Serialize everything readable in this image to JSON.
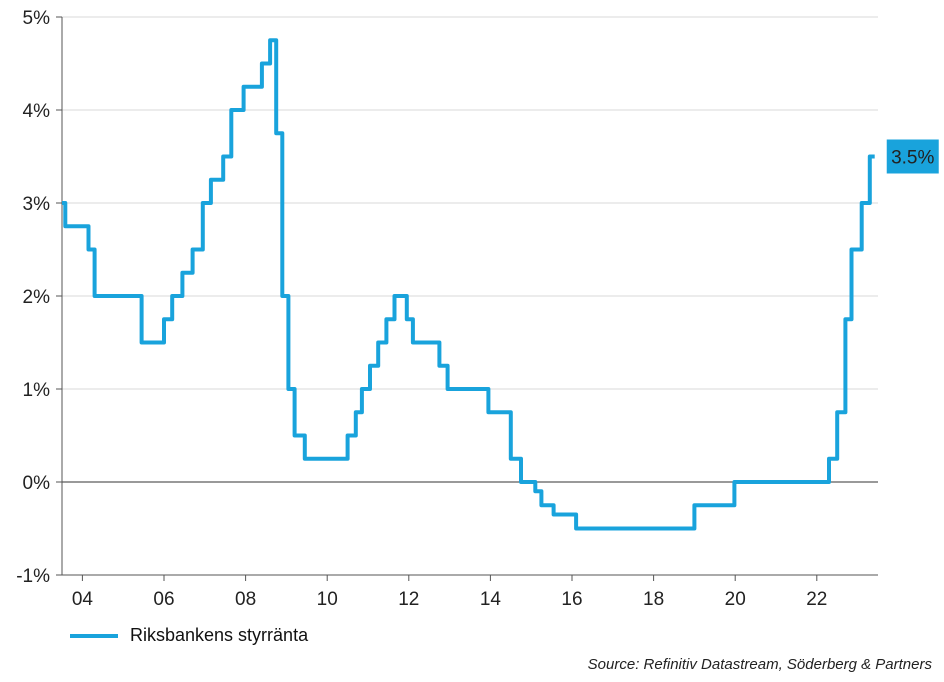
{
  "chart_data": {
    "type": "line",
    "title": "",
    "xlabel": "",
    "ylabel": "",
    "xlim": [
      2003.5,
      2023.5
    ],
    "ylim": [
      -1,
      5
    ],
    "x_ticks": [
      2004,
      2006,
      2008,
      2010,
      2012,
      2014,
      2016,
      2018,
      2020,
      2022
    ],
    "x_tick_labels": [
      "04",
      "06",
      "08",
      "10",
      "12",
      "14",
      "16",
      "18",
      "20",
      "22"
    ],
    "y_ticks": [
      -1,
      0,
      1,
      2,
      3,
      4,
      5
    ],
    "y_tick_labels": [
      "-1%",
      "0%",
      "1%",
      "2%",
      "3%",
      "4%",
      "5%"
    ],
    "grid": "horizontal",
    "zero_line": true,
    "legend_position": "bottom-left",
    "series": [
      {
        "name": "Riksbankens styrränta",
        "color": "#19a3dc",
        "step": true,
        "points": [
          [
            2003.5,
            3.0
          ],
          [
            2003.58,
            2.75
          ],
          [
            2004.15,
            2.5
          ],
          [
            2004.3,
            2.0
          ],
          [
            2005.45,
            1.5
          ],
          [
            2006.0,
            1.75
          ],
          [
            2006.2,
            2.0
          ],
          [
            2006.45,
            2.25
          ],
          [
            2006.7,
            2.5
          ],
          [
            2006.95,
            3.0
          ],
          [
            2007.15,
            3.25
          ],
          [
            2007.45,
            3.5
          ],
          [
            2007.65,
            4.0
          ],
          [
            2007.95,
            4.25
          ],
          [
            2008.4,
            4.5
          ],
          [
            2008.6,
            4.75
          ],
          [
            2008.75,
            3.75
          ],
          [
            2008.9,
            2.0
          ],
          [
            2009.05,
            1.0
          ],
          [
            2009.2,
            0.5
          ],
          [
            2009.45,
            0.25
          ],
          [
            2010.5,
            0.5
          ],
          [
            2010.7,
            0.75
          ],
          [
            2010.85,
            1.0
          ],
          [
            2011.05,
            1.25
          ],
          [
            2011.25,
            1.5
          ],
          [
            2011.45,
            1.75
          ],
          [
            2011.65,
            2.0
          ],
          [
            2011.95,
            1.75
          ],
          [
            2012.1,
            1.5
          ],
          [
            2012.75,
            1.25
          ],
          [
            2012.95,
            1.0
          ],
          [
            2013.95,
            0.75
          ],
          [
            2014.5,
            0.25
          ],
          [
            2014.75,
            0.0
          ],
          [
            2015.1,
            -0.1
          ],
          [
            2015.25,
            -0.25
          ],
          [
            2015.55,
            -0.35
          ],
          [
            2016.1,
            -0.5
          ],
          [
            2019.0,
            -0.25
          ],
          [
            2019.98,
            0.0
          ],
          [
            2022.3,
            0.25
          ],
          [
            2022.5,
            0.75
          ],
          [
            2022.7,
            1.75
          ],
          [
            2022.85,
            2.5
          ],
          [
            2023.1,
            3.0
          ],
          [
            2023.3,
            3.5
          ],
          [
            2023.42,
            3.5
          ]
        ]
      }
    ],
    "annotations": [
      {
        "label": "3.5%",
        "x": 2023.42,
        "y": 3.5,
        "background": "#19a3dc"
      }
    ],
    "source": "Source: Refinitiv Datastream, Söderberg & Partners"
  }
}
